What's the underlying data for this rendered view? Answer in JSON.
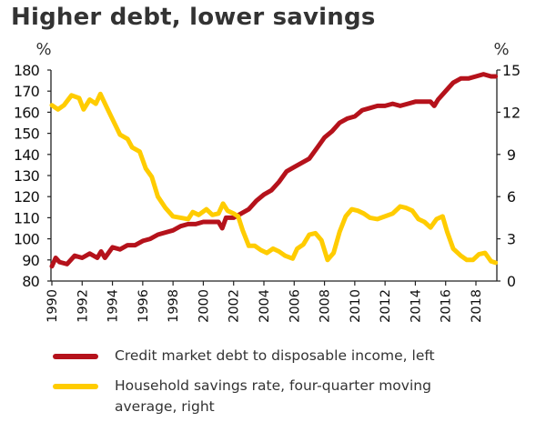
{
  "chart_data": {
    "type": "line",
    "title": "Higher debt, lower savings",
    "left_axis": {
      "unit_label": "%",
      "ylim": [
        80,
        180
      ],
      "ticks": [
        80,
        90,
        100,
        110,
        120,
        130,
        140,
        150,
        160,
        170,
        180
      ]
    },
    "right_axis": {
      "unit_label": "%",
      "ylim": [
        0,
        15
      ],
      "ticks": [
        0,
        3,
        6,
        9,
        12,
        15
      ]
    },
    "x_axis": {
      "xlim": [
        1990,
        2019.3
      ],
      "ticks": [
        "1990",
        "1992",
        "1994",
        "1996",
        "1998",
        "2000",
        "2002",
        "2004",
        "2006",
        "2008",
        "2010",
        "2012",
        "2014",
        "2016",
        "2018"
      ],
      "tick_label_rotation": "vertical"
    },
    "grid": false,
    "legend_position": "bottom",
    "series": [
      {
        "name": "Credit market debt to disposable income, left",
        "axis": "left",
        "color": "#b5121b",
        "x": [
          1990,
          1990.25,
          1990.5,
          1991,
          1991.5,
          1992,
          1992.5,
          1993,
          1993.25,
          1993.5,
          1994,
          1994.5,
          1995,
          1995.5,
          1996,
          1996.5,
          1997,
          1997.5,
          1998,
          1998.5,
          1999,
          1999.5,
          2000,
          2000.5,
          2001,
          2001.25,
          2001.5,
          2002,
          2002.5,
          2003,
          2003.5,
          2004,
          2004.5,
          2005,
          2005.5,
          2006,
          2006.5,
          2007,
          2007.5,
          2008,
          2008.5,
          2009,
          2009.5,
          2010,
          2010.5,
          2011,
          2011.5,
          2012,
          2012.5,
          2013,
          2013.5,
          2014,
          2014.5,
          2015,
          2015.25,
          2015.5,
          2016,
          2016.5,
          2017,
          2017.5,
          2018,
          2018.5,
          2019,
          2019.3
        ],
        "values": [
          87,
          91,
          89,
          88,
          92,
          91,
          93,
          91,
          94,
          91,
          96,
          95,
          97,
          97,
          99,
          100,
          102,
          103,
          104,
          106,
          107,
          107,
          108,
          108,
          108,
          105,
          110,
          110,
          112,
          114,
          118,
          121,
          123,
          127,
          132,
          134,
          136,
          138,
          143,
          148,
          151,
          155,
          157,
          158,
          161,
          162,
          163,
          163,
          164,
          163,
          164,
          165,
          165,
          165,
          163,
          166,
          170,
          174,
          176,
          176,
          177,
          178,
          177,
          177
        ],
        "unit": "%"
      },
      {
        "name": "Household savings rate, four-quarter moving average, right",
        "axis": "right",
        "color": "#ffcc00",
        "x": [
          1990,
          1990.4,
          1990.8,
          1991.3,
          1991.8,
          1992.1,
          1992.5,
          1992.9,
          1993.2,
          1993.6,
          1994,
          1994.5,
          1995,
          1995.3,
          1995.8,
          1996.2,
          1996.6,
          1997,
          1997.5,
          1998,
          1998.5,
          1999,
          1999.3,
          1999.7,
          2000.2,
          2000.6,
          2001,
          2001.3,
          2001.6,
          2002,
          2002.3,
          2002.6,
          2003,
          2003.4,
          2003.8,
          2004.2,
          2004.6,
          2005,
          2005.4,
          2005.9,
          2006.2,
          2006.6,
          2007,
          2007.4,
          2007.8,
          2008.2,
          2008.6,
          2009,
          2009.4,
          2009.8,
          2010.2,
          2010.6,
          2011,
          2011.5,
          2012,
          2012.5,
          2013,
          2013.4,
          2013.8,
          2014.2,
          2014.6,
          2015,
          2015.4,
          2015.8,
          2016.1,
          2016.5,
          2017,
          2017.4,
          2017.8,
          2018.2,
          2018.6,
          2019,
          2019.3
        ],
        "values": [
          12.5,
          12.2,
          12.5,
          13.2,
          13.0,
          12.2,
          12.9,
          12.6,
          13.3,
          12.4,
          11.5,
          10.4,
          10.1,
          9.5,
          9.2,
          8.0,
          7.4,
          6.0,
          5.2,
          4.6,
          4.5,
          4.4,
          4.9,
          4.7,
          5.1,
          4.7,
          4.8,
          5.5,
          5.0,
          4.8,
          4.6,
          3.6,
          2.5,
          2.5,
          2.2,
          2.0,
          2.3,
          2.1,
          1.8,
          1.6,
          2.3,
          2.6,
          3.3,
          3.4,
          2.9,
          1.5,
          2.0,
          3.5,
          4.6,
          5.1,
          5.0,
          4.8,
          4.5,
          4.4,
          4.6,
          4.8,
          5.3,
          5.2,
          5.0,
          4.4,
          4.2,
          3.8,
          4.4,
          4.6,
          3.5,
          2.3,
          1.8,
          1.5,
          1.5,
          1.9,
          2.0,
          1.4,
          1.3
        ],
        "unit": "%"
      }
    ]
  }
}
